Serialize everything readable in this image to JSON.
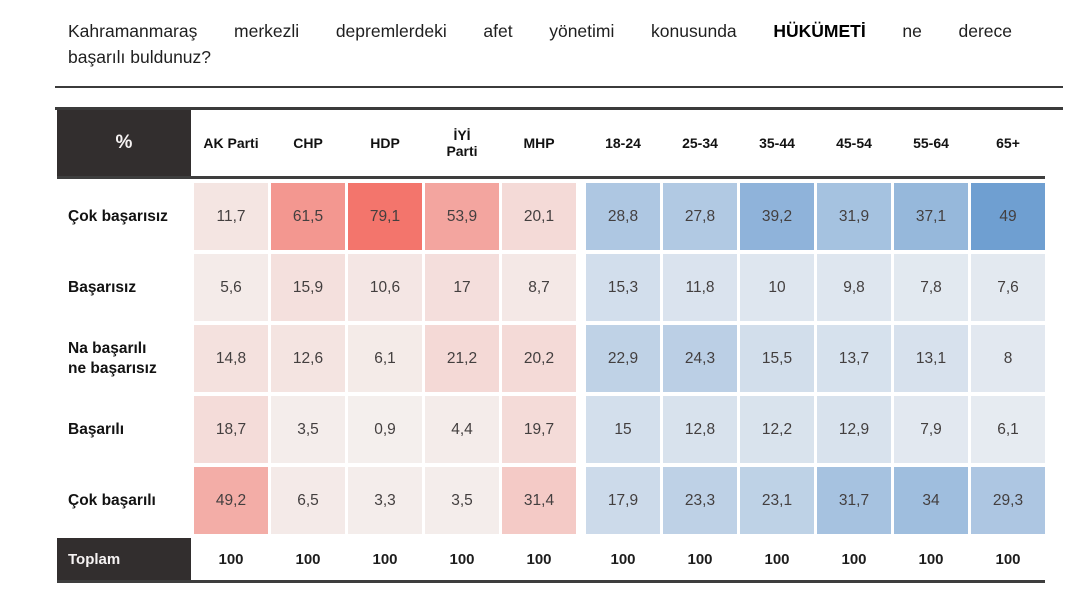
{
  "question": {
    "line1_pre": "Kahramanmaraş merkezli depremlerdeki afet yönetimi konusunda",
    "bold_word": "HÜKÜMETİ",
    "line1_post": "ne derece",
    "line2": "başarılı buldunuz?"
  },
  "chart_data": {
    "type": "heatmap",
    "title": "Kahramanmaraş merkezli depremlerdeki afet yönetimi konusunda HÜKÜMETİ ne derece başarılı buldunuz?",
    "unit": "%",
    "columns": [
      "AK Parti",
      "CHP",
      "HDP",
      "İYİ\nParti",
      "MHP",
      "18-24",
      "25-34",
      "35-44",
      "45-54",
      "55-64",
      "65+"
    ],
    "column_groups": [
      "party",
      "party",
      "party",
      "party",
      "party",
      "age",
      "age",
      "age",
      "age",
      "age",
      "age"
    ],
    "rows": [
      "Çok başarısız",
      "Başarısız",
      "Na başarılı\nne başarısız",
      "Başarılı",
      "Çok başarılı"
    ],
    "values": [
      [
        11.7,
        61.5,
        79.1,
        53.9,
        20.1,
        28.8,
        27.8,
        39.2,
        31.9,
        37.1,
        49
      ],
      [
        5.6,
        15.9,
        10.6,
        17,
        8.7,
        15.3,
        11.8,
        10,
        9.8,
        7.8,
        7.6
      ],
      [
        14.8,
        12.6,
        6.1,
        21.2,
        20.2,
        22.9,
        24.3,
        15.5,
        13.7,
        13.1,
        8
      ],
      [
        18.7,
        3.5,
        0.9,
        4.4,
        19.7,
        15,
        12.8,
        12.2,
        12.9,
        7.9,
        6.1
      ],
      [
        49.2,
        6.5,
        3.3,
        3.5,
        31.4,
        17.9,
        23.3,
        23.1,
        31.7,
        34,
        29.3
      ]
    ],
    "display": [
      [
        "11,7",
        "61,5",
        "79,1",
        "53,9",
        "20,1",
        "28,8",
        "27,8",
        "39,2",
        "31,9",
        "37,1",
        "49"
      ],
      [
        "5,6",
        "15,9",
        "10,6",
        "17",
        "8,7",
        "15,3",
        "11,8",
        "10",
        "9,8",
        "7,8",
        "7,6"
      ],
      [
        "14,8",
        "12,6",
        "6,1",
        "21,2",
        "20,2",
        "22,9",
        "24,3",
        "15,5",
        "13,7",
        "13,1",
        "8"
      ],
      [
        "18,7",
        "3,5",
        "0,9",
        "4,4",
        "19,7",
        "15",
        "12,8",
        "12,2",
        "12,9",
        "7,9",
        "6,1"
      ],
      [
        "49,2",
        "6,5",
        "3,3",
        "3,5",
        "31,4",
        "17,9",
        "23,3",
        "23,1",
        "31,7",
        "34",
        "29,3"
      ]
    ],
    "total_row": {
      "label": "Toplam",
      "values": [
        100,
        100,
        100,
        100,
        100,
        100,
        100,
        100,
        100,
        100,
        100
      ],
      "display": [
        "100",
        "100",
        "100",
        "100",
        "100",
        "100",
        "100",
        "100",
        "100",
        "100",
        "100"
      ]
    },
    "colors": {
      "party_scale_min": "#f4efed",
      "party_scale_max": "#f3756c",
      "party_scale_max_value": 79.1,
      "age_scale_min": "#eef0f3",
      "age_scale_max": "#6f9fd1",
      "age_scale_max_value": 49,
      "scale_gamma": 1.3,
      "header_dark": "#322e2e",
      "rule_dark": "#3b3b3b"
    },
    "legend_position": "none",
    "grid": false
  }
}
